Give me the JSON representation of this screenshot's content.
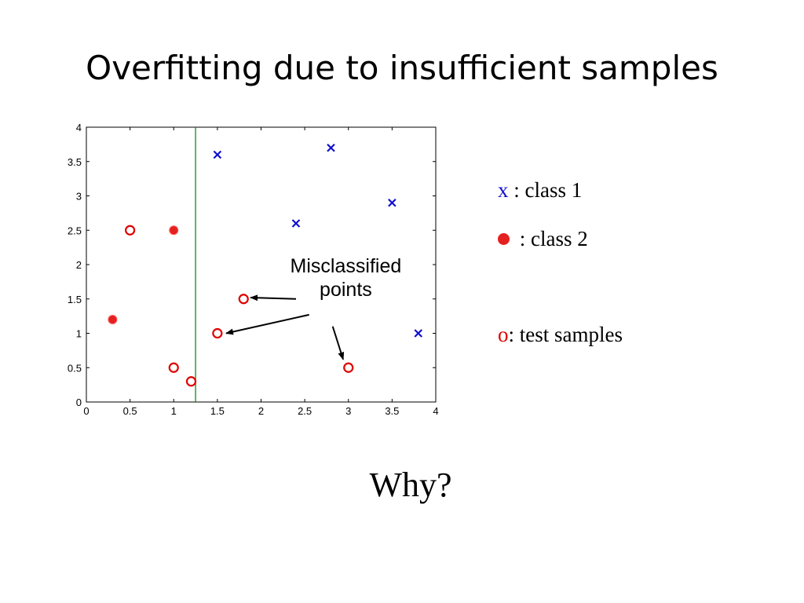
{
  "title": "Overfitting due to insufficient samples",
  "footer_question": "Why?",
  "legend": {
    "class1_symbol": "x",
    "class1_label": " : class 1",
    "class2_label": " : class 2",
    "test_symbol": "o",
    "test_label": ": test samples"
  },
  "colors": {
    "class1": "#1010d0",
    "class2": "#e00000",
    "boundary": "#008000"
  },
  "chart_data": {
    "type": "scatter",
    "xlim": [
      0,
      4
    ],
    "ylim": [
      0,
      4
    ],
    "x_ticks": [
      0,
      0.5,
      1,
      1.5,
      2,
      2.5,
      3,
      3.5,
      4
    ],
    "y_ticks": [
      0,
      0.5,
      1,
      1.5,
      2,
      2.5,
      3,
      3.5,
      4
    ],
    "x_tick_labels": [
      "0",
      "0.5",
      "1",
      "1.5",
      "2",
      "2.5",
      "3",
      "3.5",
      "4"
    ],
    "y_tick_labels": [
      "0",
      "0.5",
      "1",
      "1.5",
      "2",
      "2.5",
      "3",
      "3.5",
      "4"
    ],
    "grid": false,
    "decision_boundary_x": 1.25,
    "class1_train": [
      [
        1.5,
        3.6
      ],
      [
        2.8,
        3.7
      ],
      [
        2.4,
        2.6
      ],
      [
        3.5,
        2.9
      ],
      [
        3.8,
        1.0
      ]
    ],
    "class2_train": [
      [
        1.0,
        2.5
      ],
      [
        0.3,
        1.2
      ]
    ],
    "test_samples": [
      [
        0.5,
        2.5
      ],
      [
        1.0,
        0.5
      ],
      [
        1.2,
        0.3
      ],
      [
        1.8,
        1.5
      ],
      [
        1.5,
        1.0
      ],
      [
        3.0,
        0.5
      ]
    ],
    "annotation": {
      "text_line1": "Misclassified",
      "text_line2": "points",
      "text_anchor": [
        2.97,
        1.75
      ],
      "arrows": [
        {
          "from": [
            2.4,
            1.5
          ],
          "to": [
            1.88,
            1.52
          ]
        },
        {
          "from": [
            2.55,
            1.27
          ],
          "to": [
            1.6,
            1.0
          ]
        },
        {
          "from": [
            2.82,
            1.1
          ],
          "to": [
            2.94,
            0.62
          ]
        }
      ]
    }
  }
}
